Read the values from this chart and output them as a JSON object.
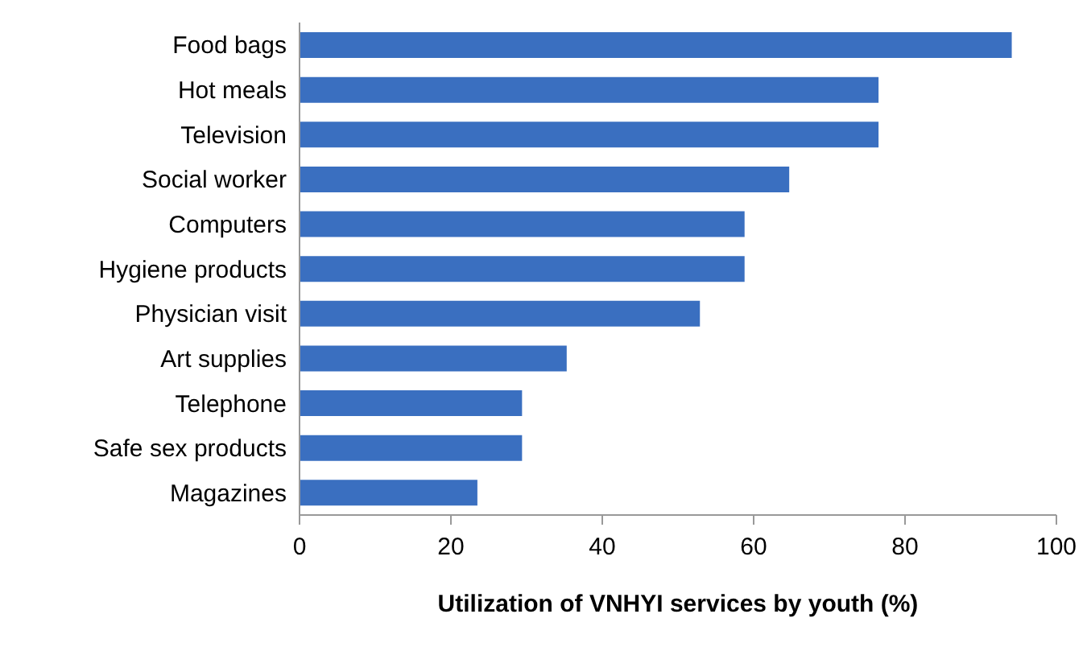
{
  "chart_data": {
    "type": "bar",
    "orientation": "horizontal",
    "xlabel": "Utilization of VNHYI services by youth (%)",
    "categories": [
      "Food bags",
      "Hot meals",
      "Television",
      "Social worker",
      "Computers",
      "Hygiene products",
      "Physician visit",
      "Art supplies",
      "Telephone",
      "Safe sex products",
      "Magazines"
    ],
    "values": [
      94.1,
      76.5,
      76.5,
      64.7,
      58.8,
      58.8,
      52.9,
      35.3,
      29.4,
      29.4,
      23.5
    ],
    "color": "#3a6fc0",
    "xlim": [
      0,
      100
    ],
    "xticks": [
      0,
      20,
      40,
      60,
      80,
      100
    ],
    "grid": false,
    "legend": false
  }
}
